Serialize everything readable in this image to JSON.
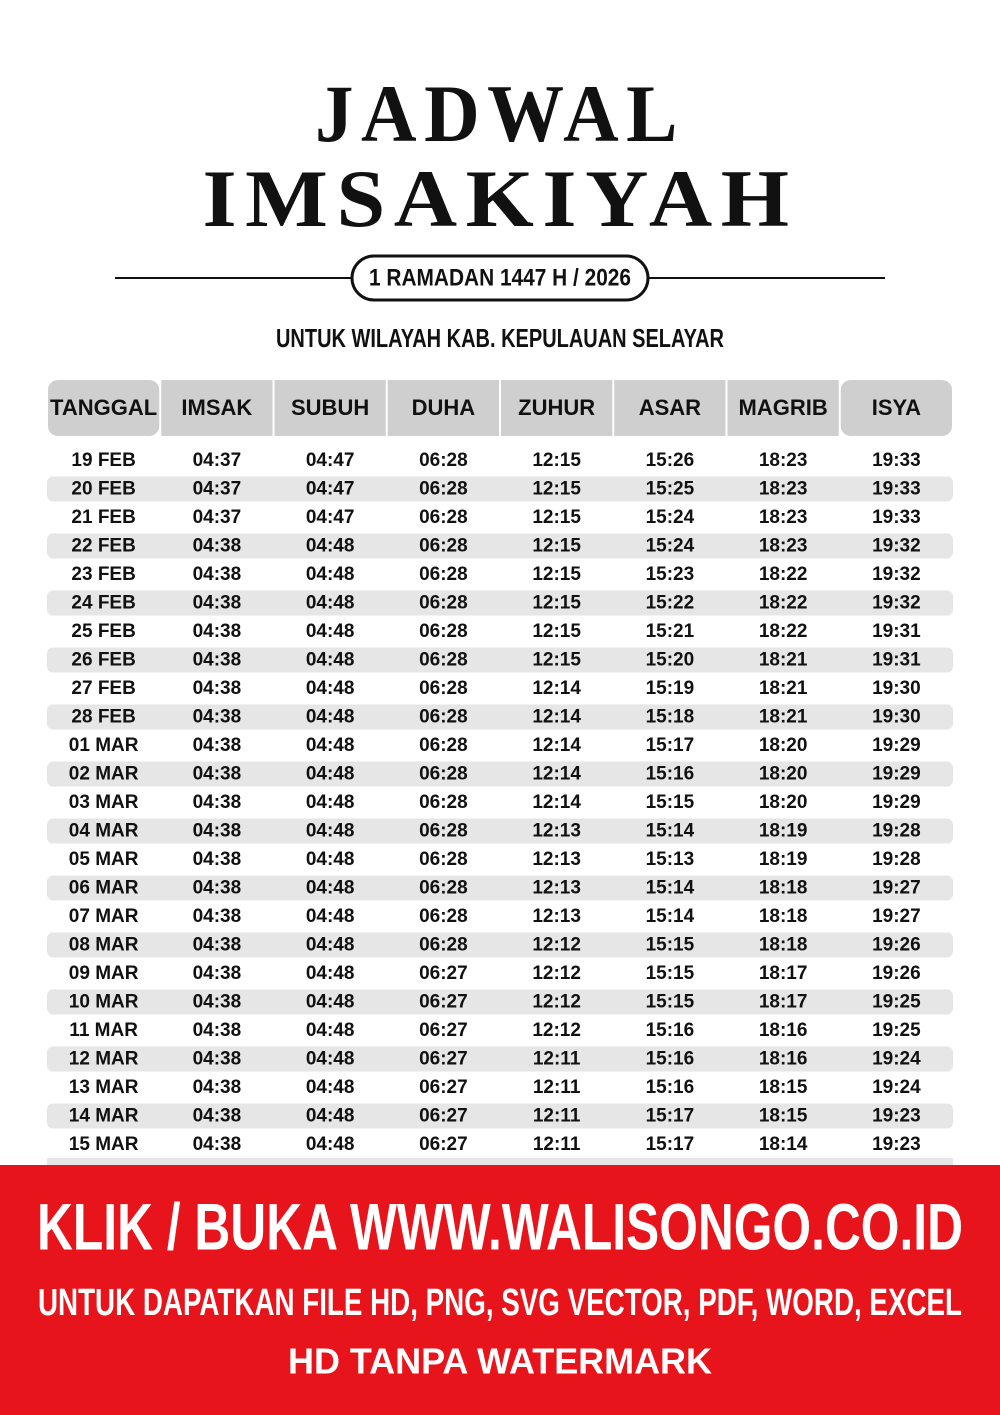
{
  "header": {
    "title_line1": "JADWAL",
    "title_line2": "IMSAKIYAH",
    "badge": "1 RAMADAN 1447 H / 2026",
    "region": "UNTUK WILAYAH KAB. KEPULAUAN SELAYAR"
  },
  "table": {
    "columns": [
      "TANGGAL",
      "IMSAK",
      "SUBUH",
      "DUHA",
      "ZUHUR",
      "ASAR",
      "MAGRIB",
      "ISYA"
    ],
    "rows": [
      [
        "19 FEB",
        "04:37",
        "04:47",
        "06:28",
        "12:15",
        "15:26",
        "18:23",
        "19:33"
      ],
      [
        "20 FEB",
        "04:37",
        "04:47",
        "06:28",
        "12:15",
        "15:25",
        "18:23",
        "19:33"
      ],
      [
        "21 FEB",
        "04:37",
        "04:47",
        "06:28",
        "12:15",
        "15:24",
        "18:23",
        "19:33"
      ],
      [
        "22 FEB",
        "04:38",
        "04:48",
        "06:28",
        "12:15",
        "15:24",
        "18:23",
        "19:32"
      ],
      [
        "23 FEB",
        "04:38",
        "04:48",
        "06:28",
        "12:15",
        "15:23",
        "18:22",
        "19:32"
      ],
      [
        "24 FEB",
        "04:38",
        "04:48",
        "06:28",
        "12:15",
        "15:22",
        "18:22",
        "19:32"
      ],
      [
        "25 FEB",
        "04:38",
        "04:48",
        "06:28",
        "12:15",
        "15:21",
        "18:22",
        "19:31"
      ],
      [
        "26 FEB",
        "04:38",
        "04:48",
        "06:28",
        "12:15",
        "15:20",
        "18:21",
        "19:31"
      ],
      [
        "27 FEB",
        "04:38",
        "04:48",
        "06:28",
        "12:14",
        "15:19",
        "18:21",
        "19:30"
      ],
      [
        "28 FEB",
        "04:38",
        "04:48",
        "06:28",
        "12:14",
        "15:18",
        "18:21",
        "19:30"
      ],
      [
        "01 MAR",
        "04:38",
        "04:48",
        "06:28",
        "12:14",
        "15:17",
        "18:20",
        "19:29"
      ],
      [
        "02 MAR",
        "04:38",
        "04:48",
        "06:28",
        "12:14",
        "15:16",
        "18:20",
        "19:29"
      ],
      [
        "03 MAR",
        "04:38",
        "04:48",
        "06:28",
        "12:14",
        "15:15",
        "18:20",
        "19:29"
      ],
      [
        "04 MAR",
        "04:38",
        "04:48",
        "06:28",
        "12:13",
        "15:14",
        "18:19",
        "19:28"
      ],
      [
        "05 MAR",
        "04:38",
        "04:48",
        "06:28",
        "12:13",
        "15:13",
        "18:19",
        "19:28"
      ],
      [
        "06 MAR",
        "04:38",
        "04:48",
        "06:28",
        "12:13",
        "15:14",
        "18:18",
        "19:27"
      ],
      [
        "07 MAR",
        "04:38",
        "04:48",
        "06:28",
        "12:13",
        "15:14",
        "18:18",
        "19:27"
      ],
      [
        "08 MAR",
        "04:38",
        "04:48",
        "06:28",
        "12:12",
        "15:15",
        "18:18",
        "19:26"
      ],
      [
        "09 MAR",
        "04:38",
        "04:48",
        "06:27",
        "12:12",
        "15:15",
        "18:17",
        "19:26"
      ],
      [
        "10 MAR",
        "04:38",
        "04:48",
        "06:27",
        "12:12",
        "15:15",
        "18:17",
        "19:25"
      ],
      [
        "11 MAR",
        "04:38",
        "04:48",
        "06:27",
        "12:12",
        "15:16",
        "18:16",
        "19:25"
      ],
      [
        "12 MAR",
        "04:38",
        "04:48",
        "06:27",
        "12:11",
        "15:16",
        "18:16",
        "19:24"
      ],
      [
        "13 MAR",
        "04:38",
        "04:48",
        "06:27",
        "12:11",
        "15:16",
        "18:15",
        "19:24"
      ],
      [
        "14 MAR",
        "04:38",
        "04:48",
        "06:27",
        "12:11",
        "15:17",
        "18:15",
        "19:23"
      ],
      [
        "15 MAR",
        "04:38",
        "04:48",
        "06:27",
        "12:11",
        "15:17",
        "18:14",
        "19:23"
      ]
    ]
  },
  "banner": {
    "line1": "KLIK / BUKA WWW.WALISONGO.CO.ID",
    "line2": "UNTUK DAPATKAN FILE HD, PNG, SVG VECTOR, PDF, WORD, EXCEL",
    "line3": "HD TANPA WATERMARK"
  }
}
